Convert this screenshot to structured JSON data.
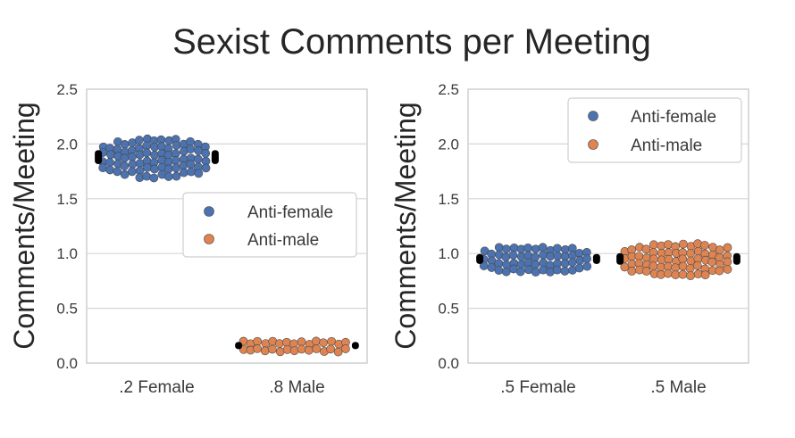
{
  "title": "Sexist Comments per Meeting",
  "colors": {
    "anti_female": "#4c72b0",
    "anti_male": "#dd8452",
    "edge": "#444444",
    "overflow": "#000000",
    "grid": "#d6d6d6",
    "frame": "#cfcfcf"
  },
  "chart_data": [
    {
      "type": "scatter",
      "subtype": "swarm",
      "title": "",
      "xlabel": "",
      "ylabel": "Comments/Meeting",
      "ylim": [
        0,
        2.5
      ],
      "yticks": [
        "0.0",
        "0.5",
        "1.0",
        "1.5",
        "2.0",
        "2.5"
      ],
      "categories": [
        ".2 Female",
        ".8 Male"
      ],
      "legend": {
        "placement": "center-right",
        "entries": [
          "Anti-female",
          "Anti-male"
        ]
      },
      "grid": true,
      "series": [
        {
          "name": "Anti-female",
          "category": ".2 Female",
          "center": 1.88,
          "low": 1.7,
          "high": 2.06
        },
        {
          "name": "Anti-male",
          "category": ".8 Male",
          "center": 0.16,
          "low": 0.11,
          "high": 0.21
        }
      ]
    },
    {
      "type": "scatter",
      "subtype": "swarm",
      "title": "",
      "xlabel": "",
      "ylabel": "Comments/Meeting",
      "ylim": [
        0,
        2.5
      ],
      "yticks": [
        "0.0",
        "0.5",
        "1.0",
        "1.5",
        "2.0",
        "2.5"
      ],
      "categories": [
        ".5 Female",
        ".5 Male"
      ],
      "legend": {
        "placement": "top-right",
        "entries": [
          "Anti-female",
          "Anti-male"
        ]
      },
      "grid": true,
      "series": [
        {
          "name": "Anti-female",
          "category": ".5 Female",
          "center": 0.95,
          "low": 0.83,
          "high": 1.09
        },
        {
          "name": "Anti-male",
          "category": ".5 Male",
          "center": 0.95,
          "low": 0.8,
          "high": 1.1
        }
      ]
    }
  ]
}
